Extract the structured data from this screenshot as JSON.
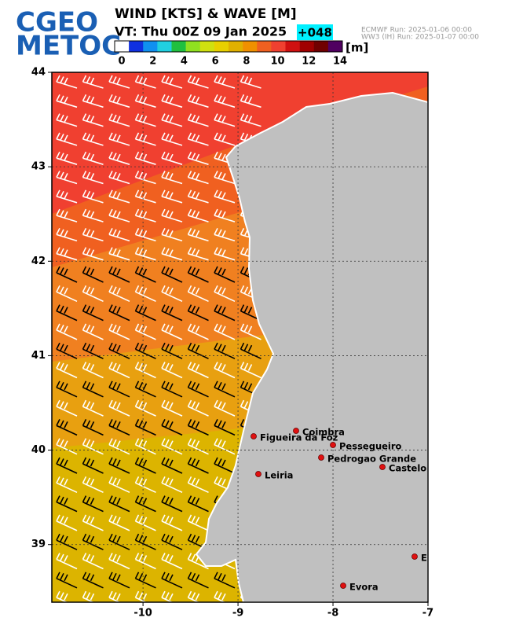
{
  "header": {
    "logo": [
      "CGEO",
      "METOC"
    ],
    "title": "WIND [KTS] & WAVE [M]",
    "valid_time": "VT:  Thu 00Z 09 Jan 2025",
    "lead": "+048",
    "runs": [
      "ECMWF    Run: 2025-01-06 00:00",
      "WW3 (IH) Run: 2025-01-07 00:00"
    ]
  },
  "colorbar": {
    "unit": "[m]",
    "range": [
      0,
      14
    ],
    "ticks": [
      0,
      2,
      4,
      6,
      8,
      10,
      12,
      14
    ],
    "colors": [
      "#ffffff",
      "#1030e0",
      "#1090f0",
      "#20d0e0",
      "#20c040",
      "#90e020",
      "#d0e010",
      "#e8d000",
      "#e0b000",
      "#f09000",
      "#f06020",
      "#f04030",
      "#d01010",
      "#a00000",
      "#700000",
      "#500060"
    ]
  },
  "map": {
    "xlim": [
      -10.96,
      -7
    ],
    "ylim": [
      38.39,
      44
    ],
    "xticks": [
      -10,
      -9,
      -8,
      -7
    ],
    "yticks": [
      44,
      43,
      42,
      41,
      40,
      39
    ],
    "cities": [
      "Coimbra",
      "Figueira da Foz",
      "Pessegueiro",
      "Pedrogao Grande",
      "Castelo Branco",
      "Leiria",
      "Elvas",
      "Evora"
    ]
  }
}
